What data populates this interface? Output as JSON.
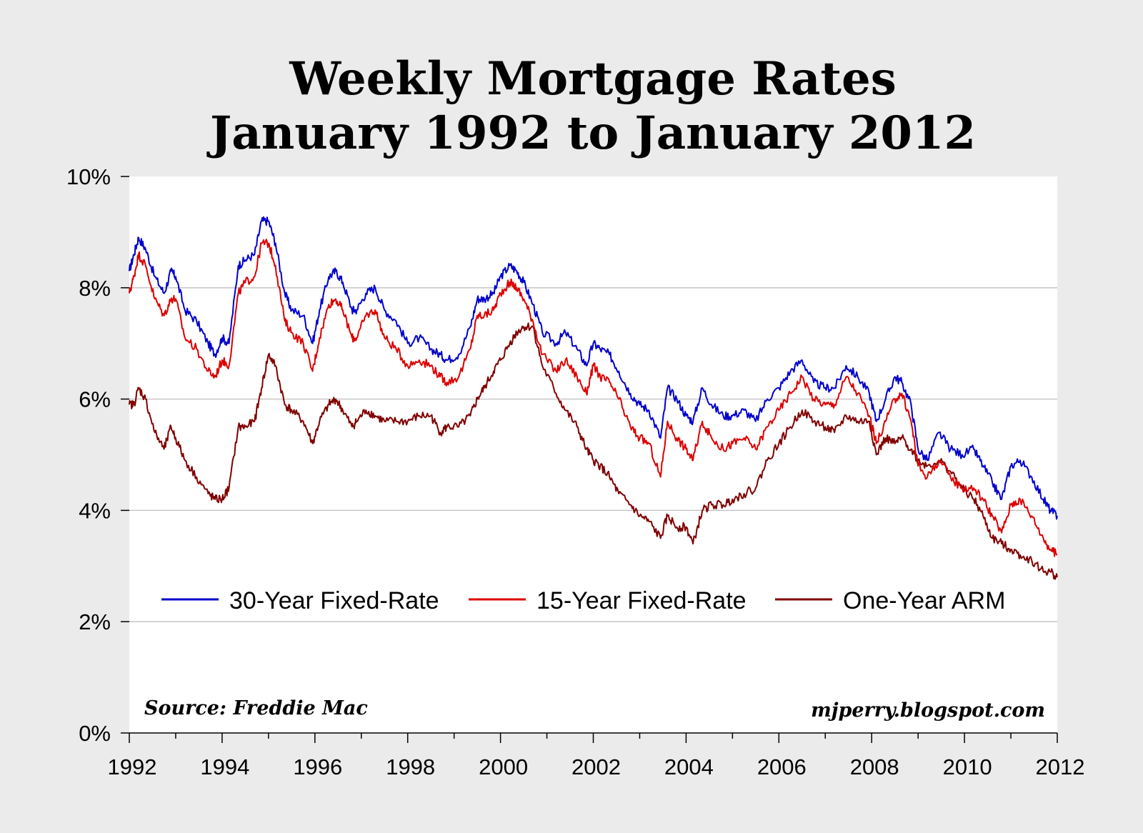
{
  "chart_data": {
    "type": "line",
    "title": "Weekly Mortgage Rates",
    "subtitle": "January 1992 to January 2012",
    "xlabel": "",
    "ylabel": "",
    "xlim": [
      1992,
      2012
    ],
    "ylim": [
      0,
      10
    ],
    "x_ticks": [
      "1992",
      "1994",
      "1996",
      "1998",
      "2000",
      "2002",
      "2004",
      "2006",
      "2008",
      "2010",
      "2012"
    ],
    "y_ticks": [
      "0%",
      "2%",
      "4%",
      "6%",
      "8%",
      "10%"
    ],
    "grid": "horizontal",
    "legend_position": "lower-middle",
    "source_note": "Source: Freddie Mac",
    "credit_note": "mjperry.blogspot.com",
    "colors": {
      "background": "#ebebeb",
      "plot_background": "#ffffff",
      "grid": "#c0c0c0"
    },
    "series": [
      {
        "name": "30-Year Fixed-Rate",
        "color": "#0000cc",
        "points": [
          [
            1992.0,
            8.3
          ],
          [
            1992.1,
            8.6
          ],
          [
            1992.2,
            8.9
          ],
          [
            1992.35,
            8.7
          ],
          [
            1992.55,
            8.2
          ],
          [
            1992.75,
            7.9
          ],
          [
            1992.9,
            8.3
          ],
          [
            1993.0,
            8.2
          ],
          [
            1993.2,
            7.6
          ],
          [
            1993.45,
            7.4
          ],
          [
            1993.7,
            7.0
          ],
          [
            1993.85,
            6.8
          ],
          [
            1994.0,
            7.1
          ],
          [
            1994.15,
            7.0
          ],
          [
            1994.35,
            8.4
          ],
          [
            1994.5,
            8.5
          ],
          [
            1994.7,
            8.6
          ],
          [
            1994.85,
            9.2
          ],
          [
            1995.0,
            9.2
          ],
          [
            1995.15,
            8.8
          ],
          [
            1995.35,
            7.9
          ],
          [
            1995.5,
            7.6
          ],
          [
            1995.75,
            7.5
          ],
          [
            1995.95,
            7.0
          ],
          [
            1996.1,
            7.6
          ],
          [
            1996.3,
            8.2
          ],
          [
            1996.45,
            8.3
          ],
          [
            1996.6,
            8.1
          ],
          [
            1996.8,
            7.6
          ],
          [
            1996.9,
            7.6
          ],
          [
            1997.1,
            7.9
          ],
          [
            1997.3,
            8.0
          ],
          [
            1997.5,
            7.6
          ],
          [
            1997.75,
            7.4
          ],
          [
            1998.0,
            7.0
          ],
          [
            1998.25,
            7.1
          ],
          [
            1998.5,
            6.9
          ],
          [
            1998.7,
            6.8
          ],
          [
            1998.85,
            6.7
          ],
          [
            1999.1,
            6.8
          ],
          [
            1999.35,
            7.3
          ],
          [
            1999.5,
            7.8
          ],
          [
            1999.65,
            7.8
          ],
          [
            1999.85,
            7.9
          ],
          [
            2000.0,
            8.2
          ],
          [
            2000.2,
            8.4
          ],
          [
            2000.35,
            8.3
          ],
          [
            2000.5,
            8.1
          ],
          [
            2000.7,
            7.7
          ],
          [
            2000.9,
            7.2
          ],
          [
            2001.2,
            7.0
          ],
          [
            2001.4,
            7.2
          ],
          [
            2001.65,
            6.9
          ],
          [
            2001.85,
            6.6
          ],
          [
            2002.0,
            7.0
          ],
          [
            2002.15,
            6.9
          ],
          [
            2002.35,
            6.8
          ],
          [
            2002.55,
            6.5
          ],
          [
            2002.8,
            6.1
          ],
          [
            2003.0,
            5.9
          ],
          [
            2003.2,
            5.8
          ],
          [
            2003.45,
            5.3
          ],
          [
            2003.6,
            6.2
          ],
          [
            2003.8,
            6.0
          ],
          [
            2004.0,
            5.7
          ],
          [
            2004.15,
            5.6
          ],
          [
            2004.35,
            6.2
          ],
          [
            2004.55,
            5.9
          ],
          [
            2004.8,
            5.7
          ],
          [
            2005.0,
            5.7
          ],
          [
            2005.25,
            5.8
          ],
          [
            2005.5,
            5.6
          ],
          [
            2005.75,
            6.0
          ],
          [
            2006.0,
            6.2
          ],
          [
            2006.25,
            6.5
          ],
          [
            2006.5,
            6.7
          ],
          [
            2006.75,
            6.3
          ],
          [
            2007.0,
            6.2
          ],
          [
            2007.2,
            6.2
          ],
          [
            2007.45,
            6.6
          ],
          [
            2007.7,
            6.4
          ],
          [
            2007.95,
            6.1
          ],
          [
            2008.1,
            5.6
          ],
          [
            2008.3,
            6.0
          ],
          [
            2008.5,
            6.4
          ],
          [
            2008.65,
            6.3
          ],
          [
            2008.85,
            5.9
          ],
          [
            2009.0,
            5.1
          ],
          [
            2009.2,
            4.9
          ],
          [
            2009.45,
            5.4
          ],
          [
            2009.7,
            5.1
          ],
          [
            2009.95,
            5.0
          ],
          [
            2010.2,
            5.1
          ],
          [
            2010.4,
            4.8
          ],
          [
            2010.6,
            4.5
          ],
          [
            2010.8,
            4.2
          ],
          [
            2011.0,
            4.8
          ],
          [
            2011.2,
            4.9
          ],
          [
            2011.45,
            4.6
          ],
          [
            2011.7,
            4.2
          ],
          [
            2011.85,
            4.0
          ],
          [
            2012.0,
            3.9
          ]
        ]
      },
      {
        "name": "15-Year Fixed-Rate",
        "color": "#dd0000",
        "points": [
          [
            1992.0,
            7.9
          ],
          [
            1992.1,
            8.2
          ],
          [
            1992.2,
            8.6
          ],
          [
            1992.35,
            8.4
          ],
          [
            1992.55,
            7.8
          ],
          [
            1992.75,
            7.5
          ],
          [
            1992.9,
            7.8
          ],
          [
            1993.0,
            7.8
          ],
          [
            1993.2,
            7.1
          ],
          [
            1993.45,
            6.9
          ],
          [
            1993.7,
            6.5
          ],
          [
            1993.85,
            6.4
          ],
          [
            1994.0,
            6.7
          ],
          [
            1994.15,
            6.6
          ],
          [
            1994.35,
            7.9
          ],
          [
            1994.5,
            8.1
          ],
          [
            1994.7,
            8.2
          ],
          [
            1994.85,
            8.8
          ],
          [
            1995.0,
            8.8
          ],
          [
            1995.15,
            8.4
          ],
          [
            1995.35,
            7.4
          ],
          [
            1995.5,
            7.2
          ],
          [
            1995.75,
            7.0
          ],
          [
            1995.95,
            6.5
          ],
          [
            1996.1,
            7.1
          ],
          [
            1996.3,
            7.7
          ],
          [
            1996.45,
            7.8
          ],
          [
            1996.6,
            7.6
          ],
          [
            1996.8,
            7.1
          ],
          [
            1996.9,
            7.1
          ],
          [
            1997.1,
            7.5
          ],
          [
            1997.3,
            7.6
          ],
          [
            1997.5,
            7.1
          ],
          [
            1997.75,
            6.9
          ],
          [
            1998.0,
            6.6
          ],
          [
            1998.25,
            6.7
          ],
          [
            1998.5,
            6.6
          ],
          [
            1998.7,
            6.4
          ],
          [
            1998.85,
            6.3
          ],
          [
            1999.1,
            6.4
          ],
          [
            1999.35,
            6.9
          ],
          [
            1999.5,
            7.5
          ],
          [
            1999.65,
            7.5
          ],
          [
            1999.85,
            7.6
          ],
          [
            2000.0,
            7.9
          ],
          [
            2000.2,
            8.1
          ],
          [
            2000.35,
            8.0
          ],
          [
            2000.5,
            7.8
          ],
          [
            2000.7,
            7.4
          ],
          [
            2000.9,
            6.8
          ],
          [
            2001.2,
            6.5
          ],
          [
            2001.4,
            6.7
          ],
          [
            2001.65,
            6.4
          ],
          [
            2001.85,
            6.1
          ],
          [
            2002.0,
            6.6
          ],
          [
            2002.15,
            6.4
          ],
          [
            2002.35,
            6.3
          ],
          [
            2002.55,
            6.0
          ],
          [
            2002.8,
            5.5
          ],
          [
            2003.0,
            5.3
          ],
          [
            2003.2,
            5.2
          ],
          [
            2003.45,
            4.6
          ],
          [
            2003.6,
            5.6
          ],
          [
            2003.8,
            5.3
          ],
          [
            2004.0,
            5.1
          ],
          [
            2004.15,
            4.9
          ],
          [
            2004.35,
            5.6
          ],
          [
            2004.55,
            5.3
          ],
          [
            2004.8,
            5.1
          ],
          [
            2005.0,
            5.2
          ],
          [
            2005.25,
            5.3
          ],
          [
            2005.5,
            5.1
          ],
          [
            2005.75,
            5.5
          ],
          [
            2006.0,
            5.8
          ],
          [
            2006.25,
            6.1
          ],
          [
            2006.5,
            6.4
          ],
          [
            2006.75,
            6.0
          ],
          [
            2007.0,
            5.9
          ],
          [
            2007.2,
            5.9
          ],
          [
            2007.45,
            6.4
          ],
          [
            2007.7,
            6.1
          ],
          [
            2007.95,
            5.7
          ],
          [
            2008.1,
            5.2
          ],
          [
            2008.3,
            5.6
          ],
          [
            2008.5,
            6.0
          ],
          [
            2008.65,
            6.1
          ],
          [
            2008.85,
            5.6
          ],
          [
            2009.0,
            4.8
          ],
          [
            2009.2,
            4.6
          ],
          [
            2009.45,
            4.9
          ],
          [
            2009.7,
            4.6
          ],
          [
            2009.95,
            4.4
          ],
          [
            2010.2,
            4.4
          ],
          [
            2010.4,
            4.2
          ],
          [
            2010.6,
            3.9
          ],
          [
            2010.8,
            3.6
          ],
          [
            2011.0,
            4.1
          ],
          [
            2011.2,
            4.2
          ],
          [
            2011.45,
            3.9
          ],
          [
            2011.7,
            3.5
          ],
          [
            2011.85,
            3.3
          ],
          [
            2012.0,
            3.2
          ]
        ]
      },
      {
        "name": "One-Year ARM",
        "color": "#800000",
        "points": [
          [
            1992.0,
            5.9
          ],
          [
            1992.1,
            5.9
          ],
          [
            1992.2,
            6.2
          ],
          [
            1992.35,
            6.0
          ],
          [
            1992.55,
            5.4
          ],
          [
            1992.75,
            5.1
          ],
          [
            1992.9,
            5.5
          ],
          [
            1993.0,
            5.3
          ],
          [
            1993.2,
            4.9
          ],
          [
            1993.45,
            4.6
          ],
          [
            1993.7,
            4.3
          ],
          [
            1993.85,
            4.2
          ],
          [
            1994.0,
            4.2
          ],
          [
            1994.15,
            4.4
          ],
          [
            1994.35,
            5.5
          ],
          [
            1994.5,
            5.5
          ],
          [
            1994.7,
            5.6
          ],
          [
            1994.85,
            6.2
          ],
          [
            1995.0,
            6.8
          ],
          [
            1995.15,
            6.6
          ],
          [
            1995.35,
            5.9
          ],
          [
            1995.5,
            5.8
          ],
          [
            1995.75,
            5.6
          ],
          [
            1995.95,
            5.2
          ],
          [
            1996.1,
            5.6
          ],
          [
            1996.3,
            5.9
          ],
          [
            1996.45,
            6.0
          ],
          [
            1996.6,
            5.8
          ],
          [
            1996.8,
            5.5
          ],
          [
            1996.9,
            5.6
          ],
          [
            1997.1,
            5.8
          ],
          [
            1997.3,
            5.7
          ],
          [
            1997.5,
            5.6
          ],
          [
            1997.75,
            5.6
          ],
          [
            1998.0,
            5.6
          ],
          [
            1998.25,
            5.7
          ],
          [
            1998.5,
            5.7
          ],
          [
            1998.7,
            5.4
          ],
          [
            1998.85,
            5.5
          ],
          [
            1999.1,
            5.5
          ],
          [
            1999.35,
            5.7
          ],
          [
            1999.5,
            6.0
          ],
          [
            1999.65,
            6.2
          ],
          [
            1999.85,
            6.5
          ],
          [
            2000.0,
            6.7
          ],
          [
            2000.2,
            7.0
          ],
          [
            2000.35,
            7.2
          ],
          [
            2000.5,
            7.3
          ],
          [
            2000.7,
            7.3
          ],
          [
            2000.9,
            6.6
          ],
          [
            2001.2,
            6.1
          ],
          [
            2001.4,
            5.8
          ],
          [
            2001.65,
            5.5
          ],
          [
            2001.85,
            5.1
          ],
          [
            2002.0,
            4.9
          ],
          [
            2002.15,
            4.8
          ],
          [
            2002.35,
            4.6
          ],
          [
            2002.55,
            4.3
          ],
          [
            2002.8,
            4.1
          ],
          [
            2003.0,
            3.9
          ],
          [
            2003.2,
            3.8
          ],
          [
            2003.45,
            3.5
          ],
          [
            2003.6,
            3.9
          ],
          [
            2003.8,
            3.7
          ],
          [
            2004.0,
            3.7
          ],
          [
            2004.15,
            3.4
          ],
          [
            2004.35,
            4.0
          ],
          [
            2004.55,
            4.1
          ],
          [
            2004.8,
            4.1
          ],
          [
            2005.0,
            4.2
          ],
          [
            2005.25,
            4.3
          ],
          [
            2005.5,
            4.4
          ],
          [
            2005.75,
            4.9
          ],
          [
            2006.0,
            5.2
          ],
          [
            2006.25,
            5.5
          ],
          [
            2006.5,
            5.8
          ],
          [
            2006.75,
            5.6
          ],
          [
            2007.0,
            5.5
          ],
          [
            2007.2,
            5.4
          ],
          [
            2007.45,
            5.7
          ],
          [
            2007.7,
            5.6
          ],
          [
            2007.95,
            5.6
          ],
          [
            2008.1,
            5.0
          ],
          [
            2008.3,
            5.3
          ],
          [
            2008.5,
            5.2
          ],
          [
            2008.65,
            5.3
          ],
          [
            2008.85,
            5.1
          ],
          [
            2009.0,
            4.9
          ],
          [
            2009.2,
            4.8
          ],
          [
            2009.45,
            4.9
          ],
          [
            2009.7,
            4.7
          ],
          [
            2009.95,
            4.4
          ],
          [
            2010.2,
            4.2
          ],
          [
            2010.4,
            3.9
          ],
          [
            2010.6,
            3.5
          ],
          [
            2010.8,
            3.4
          ],
          [
            2011.0,
            3.3
          ],
          [
            2011.2,
            3.2
          ],
          [
            2011.45,
            3.1
          ],
          [
            2011.7,
            2.9
          ],
          [
            2011.85,
            2.9
          ],
          [
            2012.0,
            2.8
          ]
        ]
      }
    ]
  }
}
